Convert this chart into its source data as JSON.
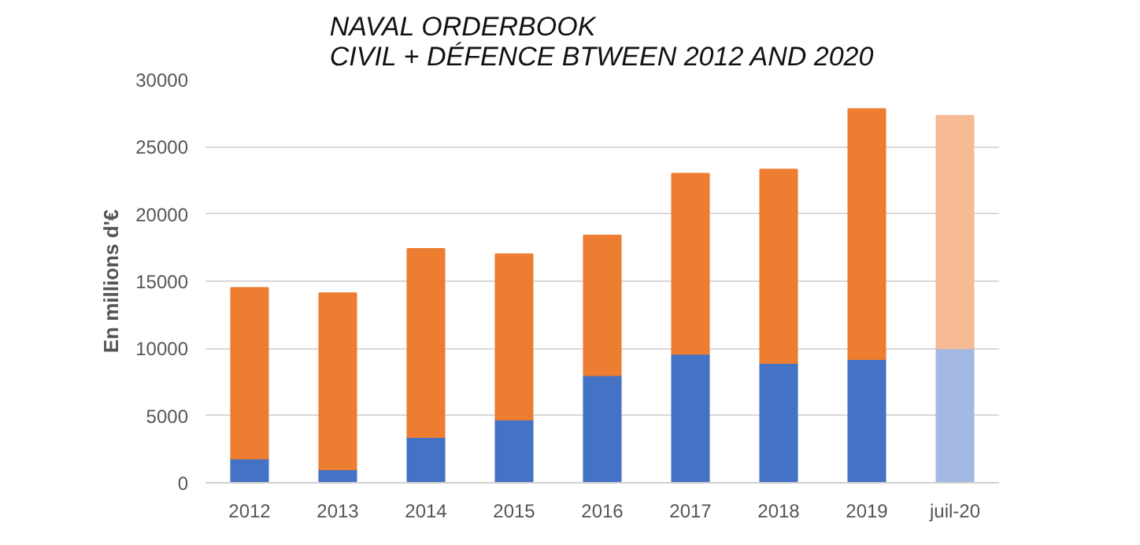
{
  "chart_data": {
    "type": "bar",
    "title": "NAVAL ORDERBOOK\nCIVIL + DÉFENCE BTWEEN 2012 AND 2020",
    "ylabel": "En millions d'€",
    "categories": [
      "2012",
      "2013",
      "2014",
      "2015",
      "2016",
      "2017",
      "2018",
      "2019",
      "juil-20"
    ],
    "stacked": true,
    "series": [
      {
        "colors": [
          "#4472c4",
          "#4472c4",
          "#4472c4",
          "#4472c4",
          "#4472c4",
          "#4472c4",
          "#4472c4",
          "#4472c4",
          "#a3b9e4"
        ],
        "values": [
          1800,
          1000,
          3400,
          4700,
          8000,
          9600,
          8900,
          9200,
          10000
        ]
      },
      {
        "colors": [
          "#ed7d31",
          "#ed7d31",
          "#ed7d31",
          "#ed7d31",
          "#ed7d31",
          "#ed7d31",
          "#ed7d31",
          "#ed7d31",
          "#f6bb94"
        ],
        "values": [
          12700,
          13100,
          14000,
          12300,
          10400,
          13400,
          14400,
          18600,
          17300
        ]
      }
    ],
    "ylim": [
      0,
      30000
    ],
    "yticks": [
      0,
      5000,
      10000,
      15000,
      20000,
      25000,
      30000
    ],
    "grid": "y"
  }
}
